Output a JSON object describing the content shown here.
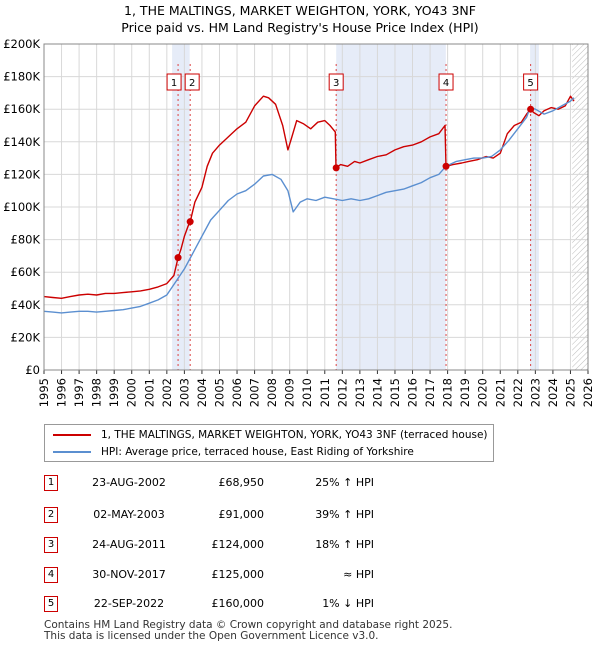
{
  "title": {
    "line1": "1, THE MALTINGS, MARKET WEIGHTON, YORK, YO43 3NF",
    "line2": "Price paid vs. HM Land Registry's House Price Index (HPI)"
  },
  "legend": {
    "property_label": "1, THE MALTINGS, MARKET WEIGHTON, YORK, YO43 3NF (terraced house)",
    "hpi_label": "HPI: Average price, terraced house, East Riding of Yorkshire"
  },
  "colors": {
    "property": "#cc0000",
    "hpi": "#5b8fd0",
    "vline": "#dd4444",
    "shade": "#e6ecf8"
  },
  "transactions": [
    {
      "num": "1",
      "date": "23-AUG-2002",
      "price": "£68,950",
      "hpi": "25% ↑ HPI"
    },
    {
      "num": "2",
      "date": "02-MAY-2003",
      "price": "£91,000",
      "hpi": "39% ↑ HPI"
    },
    {
      "num": "3",
      "date": "24-AUG-2011",
      "price": "£124,000",
      "hpi": "18% ↑ HPI"
    },
    {
      "num": "4",
      "date": "30-NOV-2017",
      "price": "£125,000",
      "hpi": "≈ HPI"
    },
    {
      "num": "5",
      "date": "22-SEP-2022",
      "price": "£160,000",
      "hpi": "1% ↓ HPI"
    }
  ],
  "footer": {
    "line1": "Contains HM Land Registry data © Crown copyright and database right 2025.",
    "line2": "This data is licensed under the Open Government Licence v3.0."
  },
  "chart_data": {
    "type": "line",
    "title": "1, THE MALTINGS, MARKET WEIGHTON, YORK, YO43 3NF",
    "subtitle": "Price paid vs. HM Land Registry's House Price Index (HPI)",
    "xlabel": "",
    "ylabel": "",
    "xlim": [
      1995,
      2026
    ],
    "ylim": [
      0,
      200000
    ],
    "x_ticks": [
      1995,
      1996,
      1997,
      1998,
      1999,
      2000,
      2001,
      2002,
      2003,
      2004,
      2005,
      2006,
      2007,
      2008,
      2009,
      2010,
      2011,
      2012,
      2013,
      2014,
      2015,
      2016,
      2017,
      2018,
      2019,
      2020,
      2021,
      2022,
      2023,
      2024,
      2025,
      2026
    ],
    "y_ticks": [
      {
        "value": 0,
        "label": "£0"
      },
      {
        "value": 20000,
        "label": "£20K"
      },
      {
        "value": 40000,
        "label": "£40K"
      },
      {
        "value": 60000,
        "label": "£60K"
      },
      {
        "value": 80000,
        "label": "£80K"
      },
      {
        "value": 100000,
        "label": "£100K"
      },
      {
        "value": 120000,
        "label": "£120K"
      },
      {
        "value": 140000,
        "label": "£140K"
      },
      {
        "value": 160000,
        "label": "£160K"
      },
      {
        "value": 180000,
        "label": "£180K"
      },
      {
        "value": 200000,
        "label": "£200K"
      }
    ],
    "grid": true,
    "hatched_after": 2025.1,
    "shaded_spans": [
      [
        2002.3,
        2003.3
      ],
      [
        2011.65,
        2017.9
      ],
      [
        2022.7,
        2023.2
      ]
    ],
    "series": [
      {
        "name": "1, THE MALTINGS, MARKET WEIGHTON, YORK, YO43 3NF (terraced house)",
        "x": [
          1995.0,
          1995.5,
          1996.0,
          1996.5,
          1997.0,
          1997.5,
          1998.0,
          1998.5,
          1999.0,
          1999.5,
          2000.0,
          2000.5,
          2001.0,
          2001.5,
          2002.0,
          2002.4,
          2002.64,
          2002.8,
          2003.0,
          2003.2,
          2003.33,
          2003.6,
          2004.0,
          2004.3,
          2004.6,
          2005.0,
          2005.5,
          2006.0,
          2006.5,
          2007.0,
          2007.5,
          2007.8,
          2008.2,
          2008.6,
          2008.9,
          2009.1,
          2009.4,
          2009.8,
          2010.2,
          2010.6,
          2011.0,
          2011.3,
          2011.6,
          2011.64,
          2011.9,
          2012.3,
          2012.7,
          2013.0,
          2013.5,
          2014.0,
          2014.5,
          2015.0,
          2015.5,
          2016.0,
          2016.5,
          2017.0,
          2017.5,
          2017.85,
          2017.91,
          2018.3,
          2018.8,
          2019.2,
          2019.7,
          2020.2,
          2020.6,
          2021.0,
          2021.4,
          2021.8,
          2022.2,
          2022.5,
          2022.73,
          2022.9,
          2023.2,
          2023.5,
          2023.9,
          2024.3,
          2024.7,
          2025.0,
          2025.2
        ],
        "y": [
          45000,
          44500,
          44000,
          45000,
          46000,
          46500,
          46000,
          47000,
          47000,
          47500,
          48000,
          48500,
          49500,
          51000,
          53000,
          58000,
          68950,
          74000,
          82000,
          88000,
          91000,
          103000,
          112000,
          125000,
          133000,
          138000,
          143000,
          148000,
          152000,
          162000,
          168000,
          167000,
          163000,
          150000,
          135000,
          142000,
          153000,
          151000,
          148000,
          152000,
          153000,
          150000,
          146000,
          124000,
          126000,
          125000,
          128000,
          127000,
          129000,
          131000,
          132000,
          135000,
          137000,
          138000,
          140000,
          143000,
          145000,
          150000,
          125000,
          126000,
          127000,
          128000,
          129000,
          131000,
          130000,
          133000,
          145000,
          150000,
          152000,
          157000,
          160000,
          158000,
          156000,
          159000,
          161000,
          160000,
          162000,
          168000,
          165000
        ]
      },
      {
        "name": "HPI: Average price, terraced house, East Riding of Yorkshire",
        "x": [
          1995.0,
          1995.5,
          1996.0,
          1996.5,
          1997.0,
          1997.5,
          1998.0,
          1998.5,
          1999.0,
          1999.5,
          2000.0,
          2000.5,
          2001.0,
          2001.5,
          2002.0,
          2002.5,
          2003.0,
          2003.5,
          2004.0,
          2004.5,
          2005.0,
          2005.5,
          2006.0,
          2006.5,
          2007.0,
          2007.5,
          2008.0,
          2008.5,
          2008.9,
          2009.2,
          2009.6,
          2010.0,
          2010.5,
          2011.0,
          2011.5,
          2012.0,
          2012.5,
          2013.0,
          2013.5,
          2014.0,
          2014.5,
          2015.0,
          2015.5,
          2016.0,
          2016.5,
          2017.0,
          2017.5,
          2017.9,
          2018.5,
          2019.0,
          2019.5,
          2020.0,
          2020.5,
          2021.0,
          2021.5,
          2022.0,
          2022.5,
          2022.7,
          2023.0,
          2023.5,
          2024.0,
          2024.5,
          2025.0,
          2025.2
        ],
        "y": [
          36000,
          35500,
          35000,
          35500,
          36000,
          36000,
          35500,
          36000,
          36500,
          37000,
          38000,
          39000,
          41000,
          43000,
          46000,
          54000,
          62000,
          72000,
          82000,
          92000,
          98000,
          104000,
          108000,
          110000,
          114000,
          119000,
          120000,
          117000,
          110000,
          97000,
          103000,
          105000,
          104000,
          106000,
          105000,
          104000,
          105000,
          104000,
          105000,
          107000,
          109000,
          110000,
          111000,
          113000,
          115000,
          118000,
          120000,
          125000,
          128000,
          129000,
          130000,
          130000,
          131000,
          135000,
          141000,
          148000,
          155000,
          161000,
          160000,
          157000,
          159000,
          162000,
          165000,
          167000
        ]
      }
    ],
    "markers": [
      {
        "label": "1",
        "x": 2002.64,
        "y": 68950
      },
      {
        "label": "2",
        "x": 2003.33,
        "y": 91000
      },
      {
        "label": "3",
        "x": 2011.65,
        "y": 124000
      },
      {
        "label": "4",
        "x": 2017.91,
        "y": 125000
      },
      {
        "label": "5",
        "x": 2022.73,
        "y": 160000
      }
    ]
  }
}
